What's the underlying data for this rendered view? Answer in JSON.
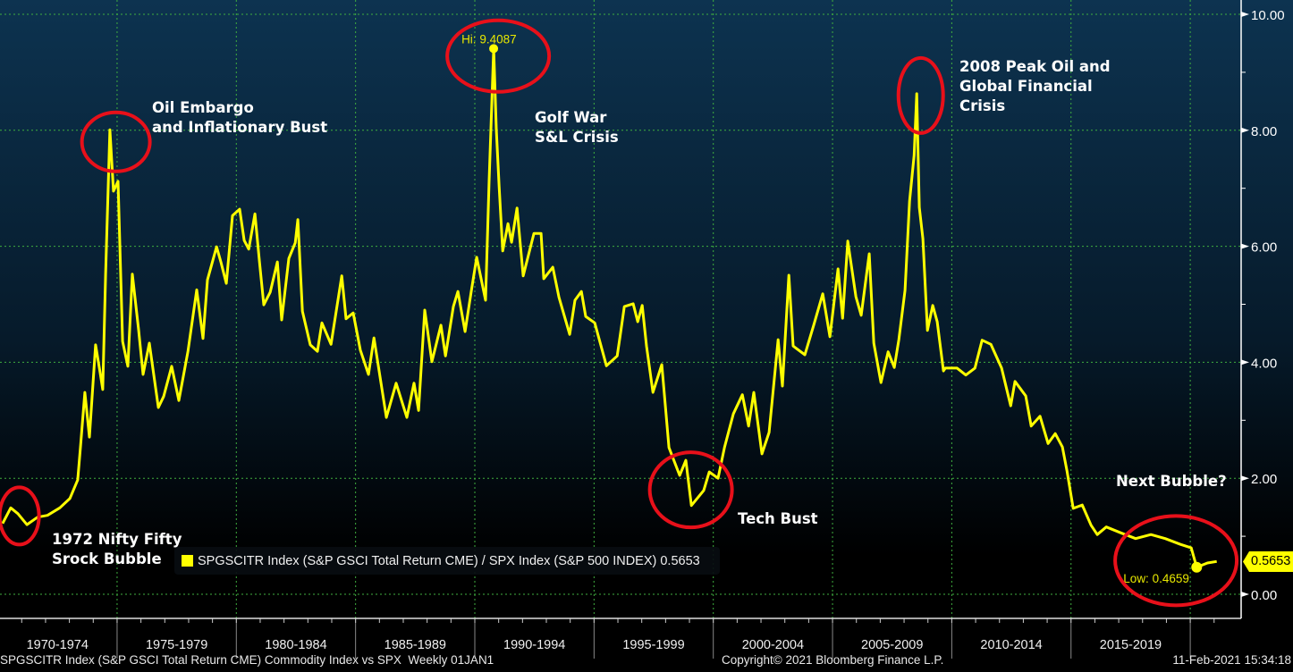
{
  "colors": {
    "series": "#ffff00",
    "annotation_ring": "#e8101a",
    "grid": "#3fae3f",
    "background_top": "#0d3350",
    "background_bottom": "#000000",
    "text": "#ffffff"
  },
  "chart_data": {
    "type": "line",
    "title": "",
    "xlabel": "",
    "ylabel": "",
    "xlim": [
      1970.09,
      2022.1
    ],
    "ylim": [
      0,
      10
    ],
    "grid": true,
    "legend_position": "bottom-left",
    "y_ticks": [
      "0.00",
      "2.00",
      "4.00",
      "6.00",
      "8.00",
      "10.00"
    ],
    "y_tick_values": [
      0,
      2,
      4,
      6,
      8,
      10
    ],
    "x_period_labels": [
      "1970-1974",
      "1975-1979",
      "1980-1984",
      "1985-1989",
      "1990-1994",
      "1995-1999",
      "2000-2004",
      "2005-2009",
      "2010-2014",
      "2015-2019"
    ],
    "series": [
      {
        "name": "SPGSCITR Index (S&P GSCI Total Return CME) / SPX Index (S&P 500 INDEX)",
        "last_value": "0.5653",
        "points": [
          [
            1970.2,
            1.22
          ],
          [
            1970.54,
            1.49
          ],
          [
            1970.84,
            1.39
          ],
          [
            1971.22,
            1.2
          ],
          [
            1971.67,
            1.33
          ],
          [
            1972.08,
            1.36
          ],
          [
            1972.6,
            1.49
          ],
          [
            1973.02,
            1.65
          ],
          [
            1973.35,
            1.97
          ],
          [
            1973.47,
            2.56
          ],
          [
            1973.65,
            3.48
          ],
          [
            1973.84,
            2.71
          ],
          [
            1974.1,
            4.3
          ],
          [
            1974.29,
            3.82
          ],
          [
            1974.4,
            3.53
          ],
          [
            1974.52,
            5.52
          ],
          [
            1974.7,
            8.01
          ],
          [
            1974.85,
            6.95
          ],
          [
            1975.04,
            7.12
          ],
          [
            1975.23,
            4.36
          ],
          [
            1975.45,
            3.93
          ],
          [
            1975.64,
            5.52
          ],
          [
            1975.9,
            4.56
          ],
          [
            1976.09,
            3.79
          ],
          [
            1976.35,
            4.33
          ],
          [
            1976.73,
            3.22
          ],
          [
            1976.95,
            3.41
          ],
          [
            1977.29,
            3.93
          ],
          [
            1977.59,
            3.34
          ],
          [
            1977.97,
            4.19
          ],
          [
            1978.34,
            5.25
          ],
          [
            1978.6,
            4.41
          ],
          [
            1978.79,
            5.42
          ],
          [
            1979.17,
            5.99
          ],
          [
            1979.35,
            5.73
          ],
          [
            1979.58,
            5.36
          ],
          [
            1979.84,
            6.53
          ],
          [
            1980.14,
            6.64
          ],
          [
            1980.33,
            6.1
          ],
          [
            1980.52,
            5.95
          ],
          [
            1980.78,
            6.56
          ],
          [
            1980.97,
            5.73
          ],
          [
            1981.15,
            4.99
          ],
          [
            1981.42,
            5.21
          ],
          [
            1981.72,
            5.73
          ],
          [
            1981.9,
            4.73
          ],
          [
            1982.2,
            5.79
          ],
          [
            1982.47,
            6.06
          ],
          [
            1982.58,
            6.46
          ],
          [
            1982.77,
            4.88
          ],
          [
            1983.1,
            4.3
          ],
          [
            1983.4,
            4.19
          ],
          [
            1983.59,
            4.68
          ],
          [
            1983.97,
            4.31
          ],
          [
            1984.42,
            5.49
          ],
          [
            1984.6,
            4.75
          ],
          [
            1984.9,
            4.85
          ],
          [
            1985.2,
            4.21
          ],
          [
            1985.54,
            3.79
          ],
          [
            1985.77,
            4.42
          ],
          [
            1986.29,
            3.05
          ],
          [
            1986.7,
            3.64
          ],
          [
            1987.15,
            3.05
          ],
          [
            1987.45,
            3.64
          ],
          [
            1987.64,
            3.17
          ],
          [
            1987.9,
            4.9
          ],
          [
            1988.2,
            4.01
          ],
          [
            1988.58,
            4.64
          ],
          [
            1988.77,
            4.11
          ],
          [
            1989.1,
            4.96
          ],
          [
            1989.29,
            5.22
          ],
          [
            1989.59,
            4.53
          ],
          [
            1989.85,
            5.22
          ],
          [
            1990.08,
            5.81
          ],
          [
            1990.45,
            5.07
          ],
          [
            1990.6,
            7.13
          ],
          [
            1990.79,
            9.4087
          ],
          [
            1990.9,
            8.03
          ],
          [
            1991.02,
            7.03
          ],
          [
            1991.17,
            5.92
          ],
          [
            1991.39,
            6.39
          ],
          [
            1991.54,
            6.07
          ],
          [
            1991.77,
            6.66
          ],
          [
            1992.03,
            5.49
          ],
          [
            1992.48,
            6.22
          ],
          [
            1992.78,
            6.22
          ],
          [
            1992.89,
            5.44
          ],
          [
            1993.27,
            5.64
          ],
          [
            1993.53,
            5.12
          ],
          [
            1993.98,
            4.48
          ],
          [
            1994.2,
            5.07
          ],
          [
            1994.47,
            5.22
          ],
          [
            1994.65,
            4.79
          ],
          [
            1995.03,
            4.68
          ],
          [
            1995.52,
            3.94
          ],
          [
            1995.97,
            4.11
          ],
          [
            1996.08,
            4.42
          ],
          [
            1996.27,
            4.96
          ],
          [
            1996.64,
            5.01
          ],
          [
            1996.83,
            4.7
          ],
          [
            1997.02,
            4.98
          ],
          [
            1997.2,
            4.28
          ],
          [
            1997.47,
            3.48
          ],
          [
            1997.84,
            3.96
          ],
          [
            1998.14,
            2.53
          ],
          [
            1998.59,
            2.05
          ],
          [
            1998.85,
            2.31
          ],
          [
            1999.08,
            1.53
          ],
          [
            1999.6,
            1.79
          ],
          [
            1999.83,
            2.11
          ],
          [
            2000.2,
            2.0
          ],
          [
            2000.47,
            2.53
          ],
          [
            2000.84,
            3.11
          ],
          [
            2001.22,
            3.44
          ],
          [
            2001.48,
            2.9
          ],
          [
            2001.7,
            3.48
          ],
          [
            2002.04,
            2.42
          ],
          [
            2002.34,
            2.79
          ],
          [
            2002.72,
            4.39
          ],
          [
            2002.9,
            3.59
          ],
          [
            2003.17,
            5.5
          ],
          [
            2003.35,
            4.28
          ],
          [
            2003.84,
            4.13
          ],
          [
            2004.22,
            4.65
          ],
          [
            2004.59,
            5.18
          ],
          [
            2004.89,
            4.44
          ],
          [
            2005.23,
            5.61
          ],
          [
            2005.42,
            4.76
          ],
          [
            2005.64,
            6.09
          ],
          [
            2005.98,
            5.13
          ],
          [
            2006.2,
            4.81
          ],
          [
            2006.54,
            5.87
          ],
          [
            2006.73,
            4.33
          ],
          [
            2007.03,
            3.65
          ],
          [
            2007.33,
            4.18
          ],
          [
            2007.59,
            3.91
          ],
          [
            2007.78,
            4.39
          ],
          [
            2008.04,
            5.24
          ],
          [
            2008.23,
            6.78
          ],
          [
            2008.42,
            7.57
          ],
          [
            2008.53,
            8.63
          ],
          [
            2008.64,
            6.67
          ],
          [
            2008.79,
            6.13
          ],
          [
            2008.98,
            4.55
          ],
          [
            2009.2,
            4.98
          ],
          [
            2009.39,
            4.7
          ],
          [
            2009.65,
            3.85
          ],
          [
            2009.73,
            3.9
          ],
          [
            2010.22,
            3.9
          ],
          [
            2010.59,
            3.78
          ],
          [
            2010.97,
            3.9
          ],
          [
            2011.27,
            4.38
          ],
          [
            2011.64,
            4.31
          ],
          [
            2012.09,
            3.9
          ],
          [
            2012.47,
            3.25
          ],
          [
            2012.65,
            3.67
          ],
          [
            2013.1,
            3.42
          ],
          [
            2013.33,
            2.9
          ],
          [
            2013.7,
            3.07
          ],
          [
            2014.04,
            2.6
          ],
          [
            2014.34,
            2.77
          ],
          [
            2014.64,
            2.54
          ],
          [
            2014.83,
            2.13
          ],
          [
            2015.09,
            1.48
          ],
          [
            2015.47,
            1.54
          ],
          [
            2015.84,
            1.19
          ],
          [
            2016.1,
            1.03
          ],
          [
            2016.48,
            1.16
          ],
          [
            2017.08,
            1.06
          ],
          [
            2017.71,
            0.96
          ],
          [
            2018.35,
            1.03
          ],
          [
            2018.95,
            0.96
          ],
          [
            2019.59,
            0.86
          ],
          [
            2020.04,
            0.8
          ],
          [
            2020.27,
            0.4659
          ],
          [
            2020.72,
            0.54
          ],
          [
            2021.11,
            0.5653
          ]
        ]
      }
    ],
    "markers": {
      "high": {
        "label": "Hi: 9.4087",
        "x": 1990.79,
        "y": 9.4087
      },
      "low": {
        "label": "Low: 0.4659",
        "x": 2020.27,
        "y": 0.4659
      }
    },
    "annotations": [
      {
        "lines": [
          "1972 Nifty Fifty",
          "Srock Bubble"
        ],
        "ring_x": 1970.9,
        "ring_y": 1.35
      },
      {
        "lines": [
          "Oil Embargo",
          "and Inflationary Bust"
        ],
        "ring_x": 1974.95,
        "ring_y": 7.8
      },
      {
        "lines": [
          "Golf War",
          "S&L Crisis"
        ],
        "ring_x": 1990.98,
        "ring_y": 9.28
      },
      {
        "lines": [
          "Tech Bust"
        ],
        "ring_x": 1999.06,
        "ring_y": 1.8
      },
      {
        "lines": [
          "2008 Peak Oil and",
          "Global Financial",
          "Crisis"
        ],
        "ring_x": 2008.7,
        "ring_y": 8.6
      },
      {
        "lines": [
          "Next Bubble?"
        ],
        "ring_x": 2019.4,
        "ring_y": 0.58
      }
    ]
  },
  "legend": {
    "label": "SPGSCITR Index (S&P GSCI Total Return CME) / SPX Index (S&P 500 INDEX) 0.5653"
  },
  "last_value_tag": "0.5653",
  "footer": {
    "description": "SPGSCITR Index (S&P GSCI Total Return CME) Commodity Index vs SPX  Weekly 01JAN1",
    "copyright": "Copyright© 2021 Bloomberg Finance L.P.",
    "timestamp": "11-Feb-2021 15:34:18"
  }
}
